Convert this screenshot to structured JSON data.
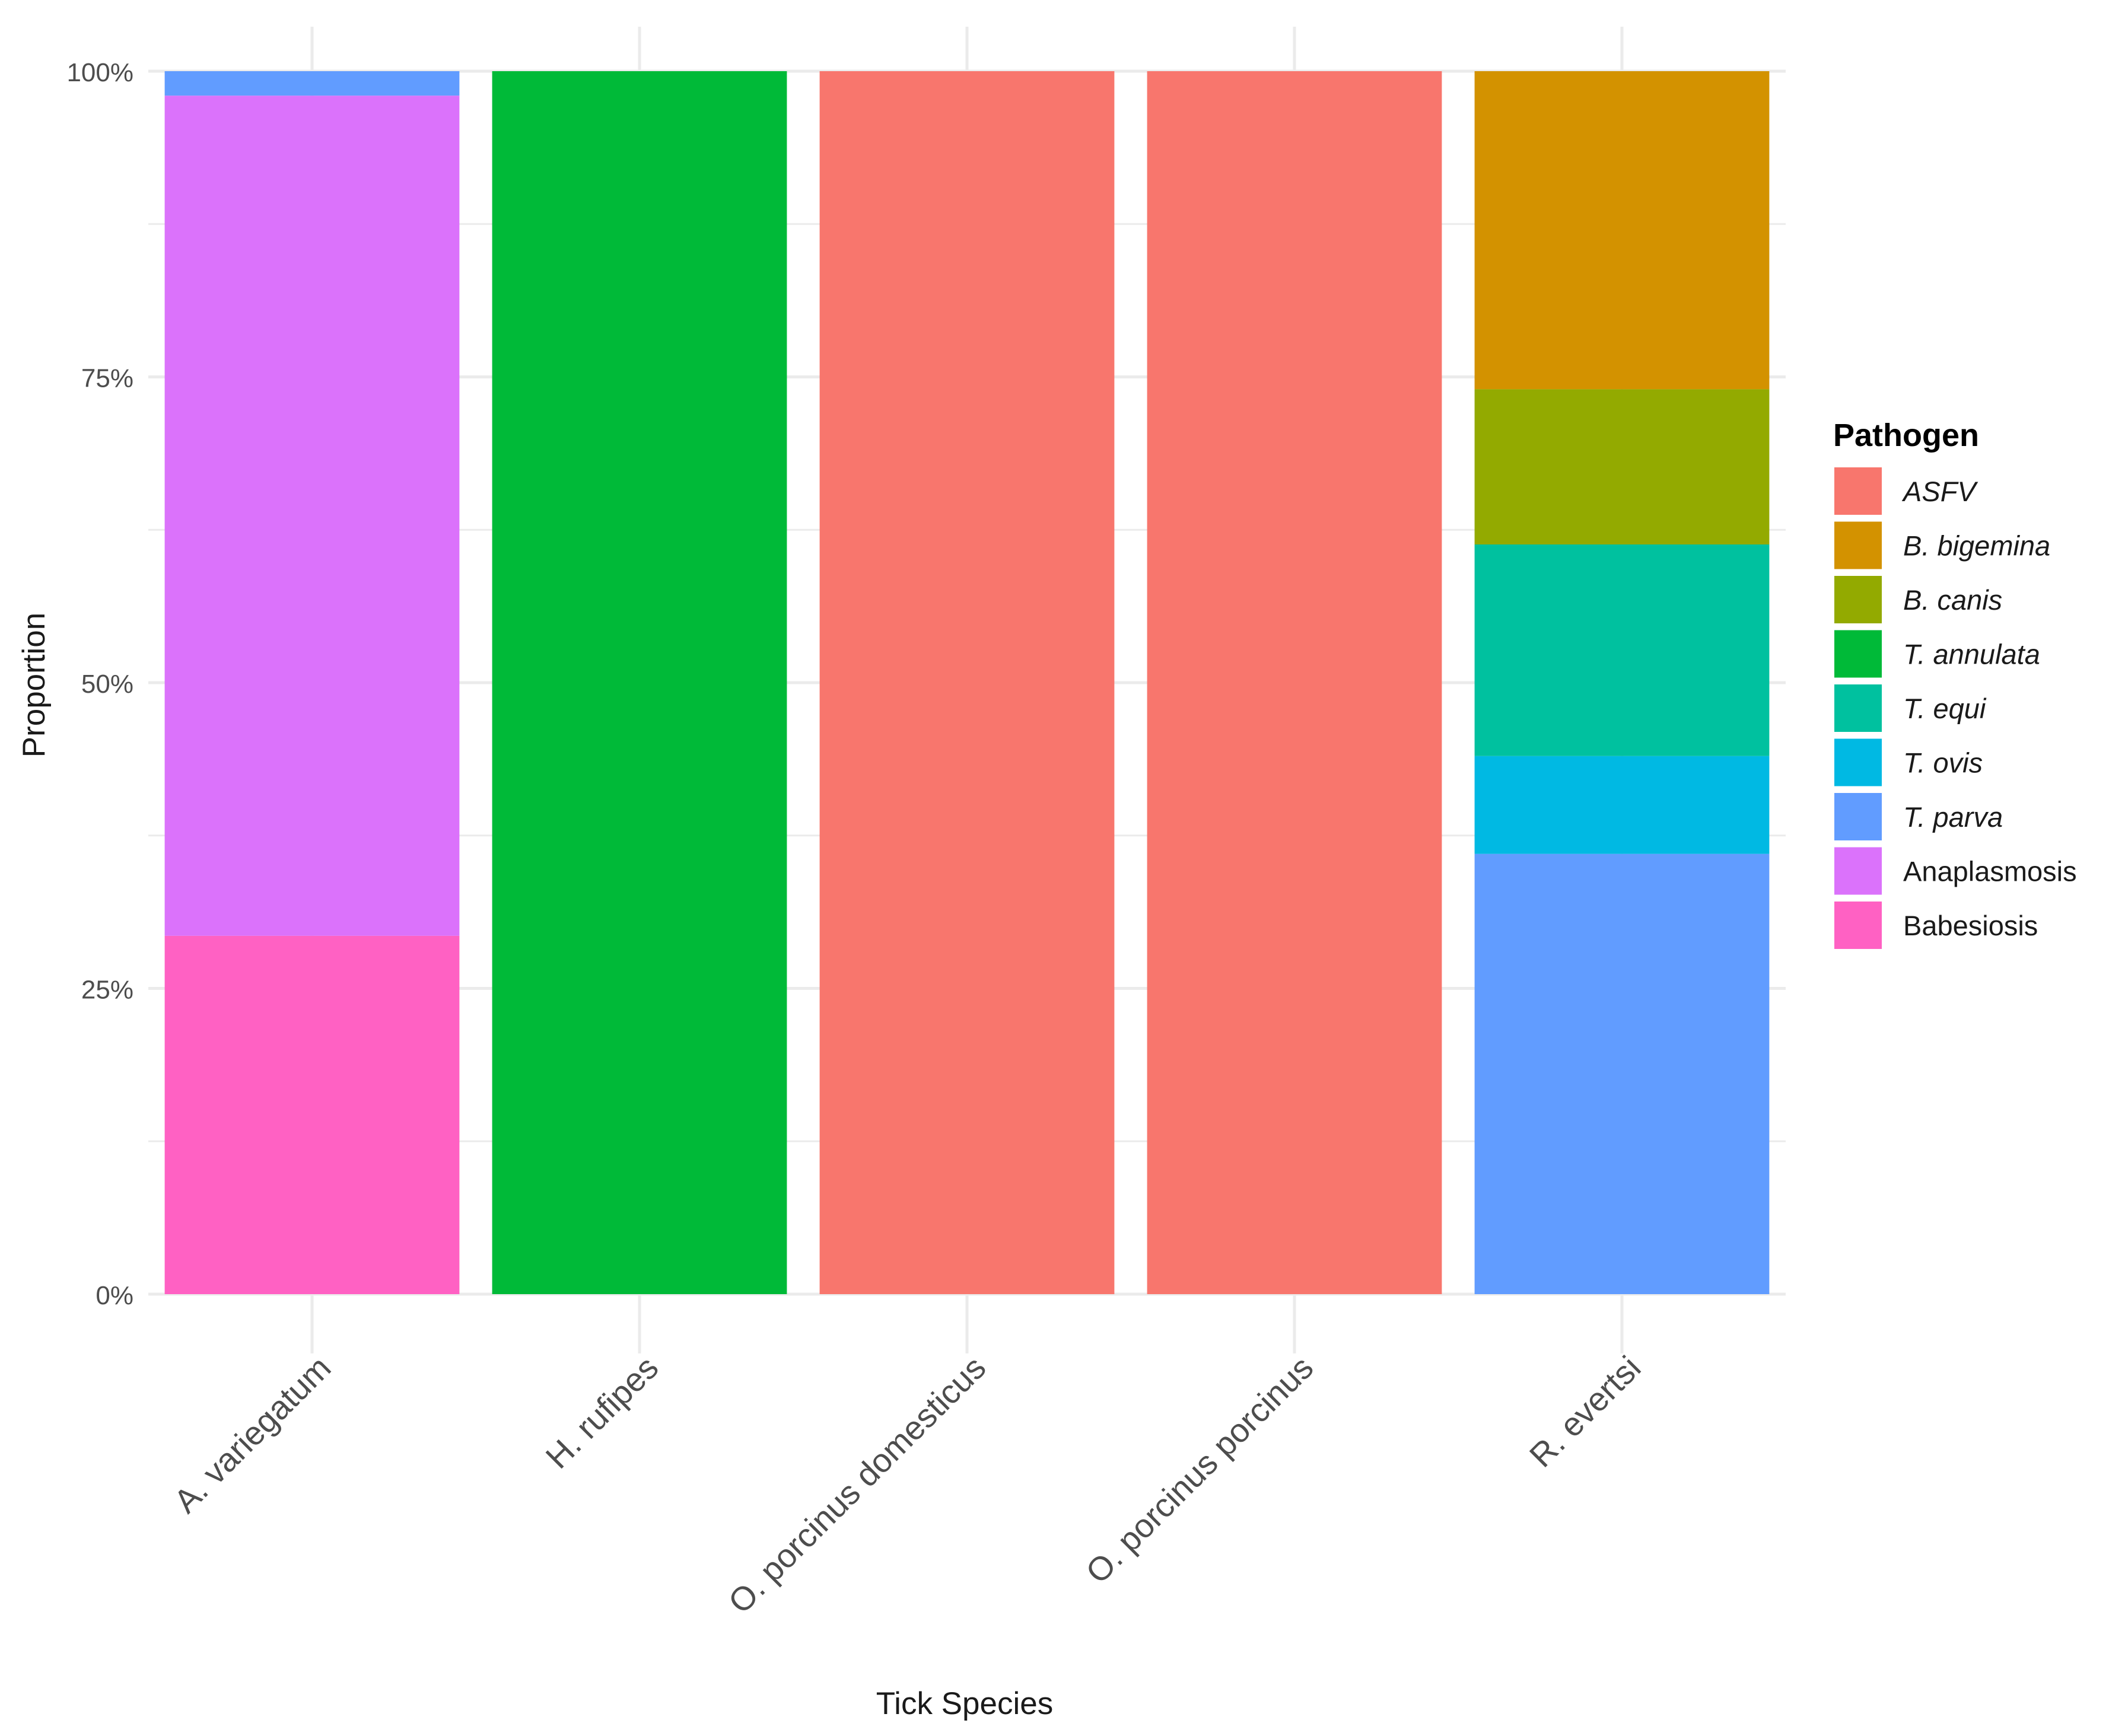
{
  "chart_data": {
    "type": "bar",
    "stacked": true,
    "title": "",
    "xlabel": "Tick Species",
    "ylabel": "Proportion",
    "ylim": [
      0,
      1
    ],
    "y_ticks": [
      {
        "value": 0,
        "label": "0%"
      },
      {
        "value": 0.25,
        "label": "25%"
      },
      {
        "value": 0.5,
        "label": "50%"
      },
      {
        "value": 0.75,
        "label": "75%"
      },
      {
        "value": 1,
        "label": "100%"
      }
    ],
    "grid": true,
    "legend": {
      "title": "Pathogen",
      "placement": "right"
    },
    "categories": [
      "A. variegatum",
      "H. rufipes",
      "O. porcinus domesticus",
      "O. porcinus porcinus",
      "R. evertsi"
    ],
    "series": [
      {
        "name": "ASFV",
        "italic": true,
        "color": "#F8766D",
        "values": [
          0,
          0,
          1,
          1,
          0
        ]
      },
      {
        "name": "B. bigemina",
        "italic": true,
        "color": "#D39200",
        "values": [
          0,
          0,
          0,
          0,
          0.26
        ]
      },
      {
        "name": "B. canis",
        "italic": true,
        "color": "#93AA00",
        "values": [
          0,
          0,
          0,
          0,
          0.127
        ]
      },
      {
        "name": "T. annulata",
        "italic": true,
        "color": "#00BA38",
        "values": [
          0,
          1,
          0,
          0,
          0
        ]
      },
      {
        "name": "T. equi",
        "italic": true,
        "color": "#00C19F",
        "values": [
          0,
          0,
          0,
          0,
          0.173
        ]
      },
      {
        "name": "T. ovis",
        "italic": true,
        "color": "#00B9E3",
        "values": [
          0,
          0,
          0,
          0,
          0.08
        ]
      },
      {
        "name": "T. parva",
        "italic": true,
        "color": "#619CFF",
        "values": [
          0.02,
          0,
          0,
          0,
          0.36
        ]
      },
      {
        "name": "Anaplasmosis",
        "italic": false,
        "color": "#DB72FB",
        "values": [
          0.687,
          0,
          0,
          0,
          0
        ]
      },
      {
        "name": "Babesiosis",
        "italic": false,
        "color": "#FF61C3",
        "values": [
          0.293,
          0,
          0,
          0,
          0
        ]
      }
    ]
  }
}
